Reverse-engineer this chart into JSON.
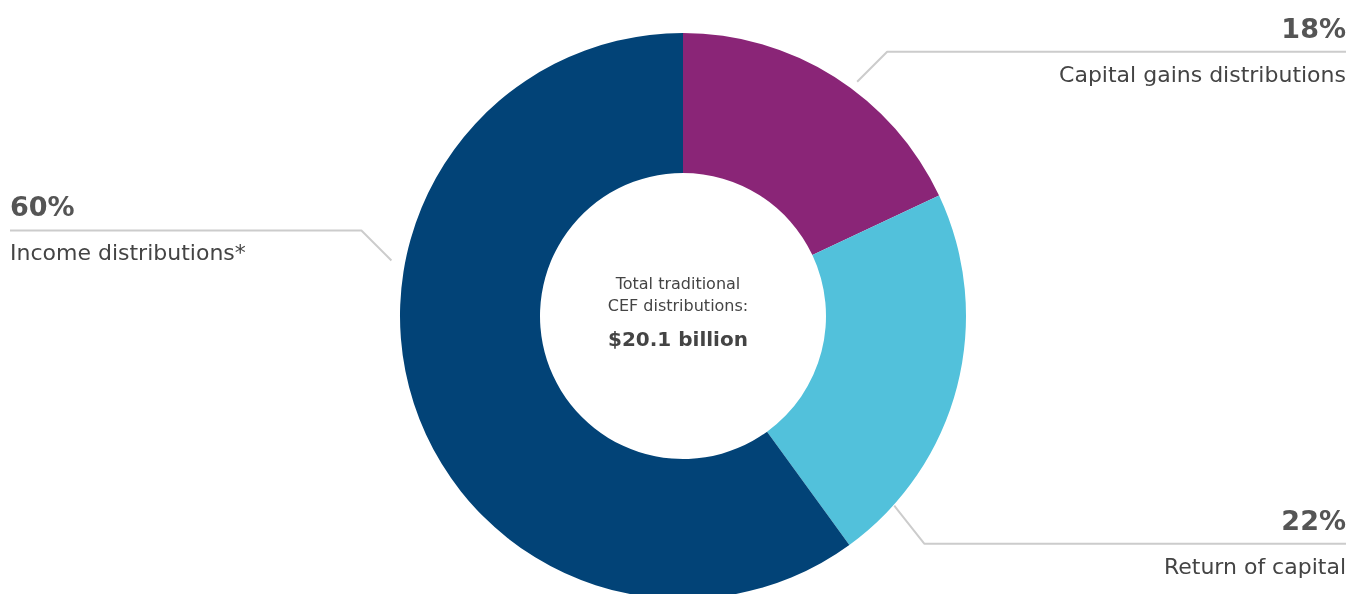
{
  "chart_data": {
    "type": "donut",
    "categories": [
      "Capital gains distributions",
      "Return of capital",
      "Income distributions*"
    ],
    "values": [
      18,
      22,
      60
    ],
    "colors": [
      "#8a2577",
      "#52c1db",
      "#024377"
    ],
    "value_labels": [
      "18%",
      "22%",
      "60%"
    ],
    "annotations": [
      "Total traditional CEF distributions:",
      "$20.1 billion"
    ]
  }
}
